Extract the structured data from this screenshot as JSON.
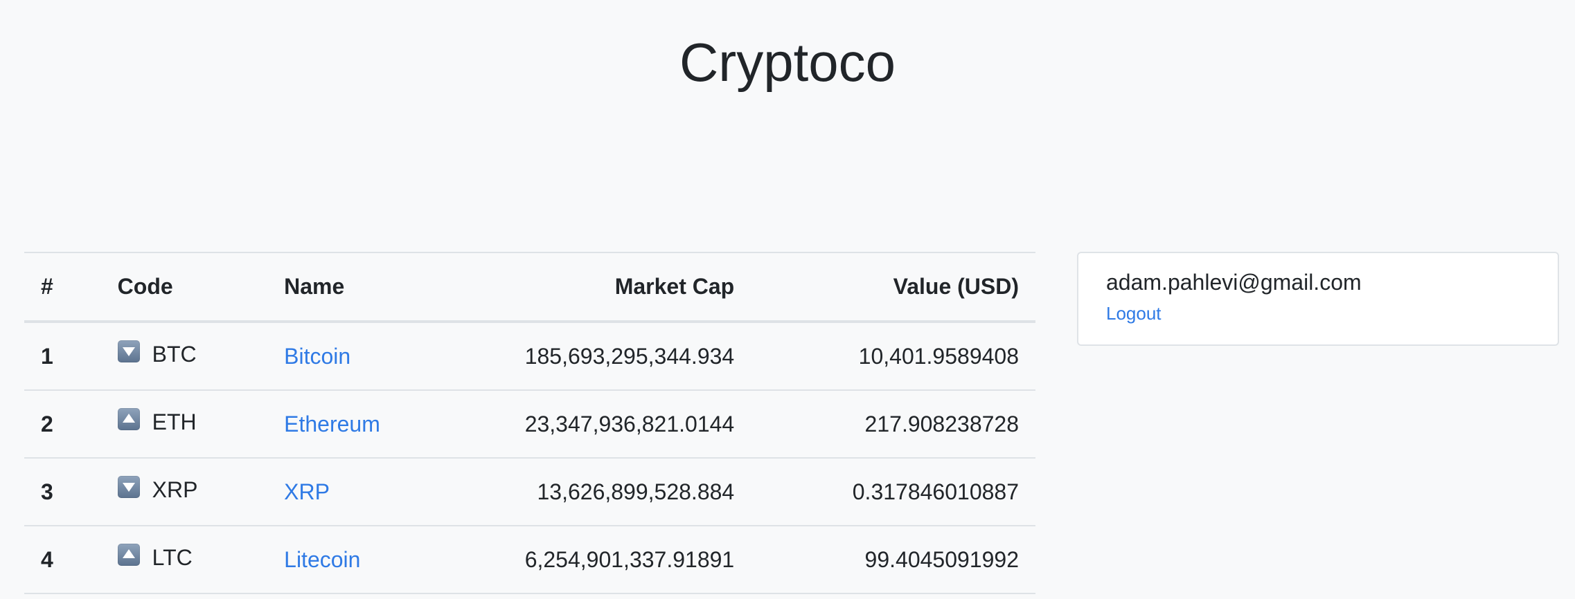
{
  "header": {
    "title": "Cryptoco"
  },
  "table": {
    "columns": {
      "rank": "#",
      "code": "Code",
      "name": "Name",
      "market_cap": "Market Cap",
      "value": "Value (USD)"
    },
    "rows": [
      {
        "rank": "1",
        "trend": "down",
        "code": "BTC",
        "name": "Bitcoin",
        "market_cap": "185,693,295,344.934",
        "value": "10,401.9589408"
      },
      {
        "rank": "2",
        "trend": "up",
        "code": "ETH",
        "name": "Ethereum",
        "market_cap": "23,347,936,821.0144",
        "value": "217.908238728"
      },
      {
        "rank": "3",
        "trend": "down",
        "code": "XRP",
        "name": "XRP",
        "market_cap": "13,626,899,528.884",
        "value": "0.317846010887"
      },
      {
        "rank": "4",
        "trend": "up",
        "code": "LTC",
        "name": "Litecoin",
        "market_cap": "6,254,901,337.91891",
        "value": "99.4045091992"
      }
    ]
  },
  "user": {
    "email": "adam.pahlevi@gmail.com",
    "logout_label": "Logout"
  },
  "icons": {
    "down": "arrow-down-icon",
    "up": "arrow-up-icon"
  },
  "colors": {
    "background": "#f8f9fa",
    "link": "#2f7ae5",
    "text": "#212529",
    "border": "#dee2e6"
  }
}
